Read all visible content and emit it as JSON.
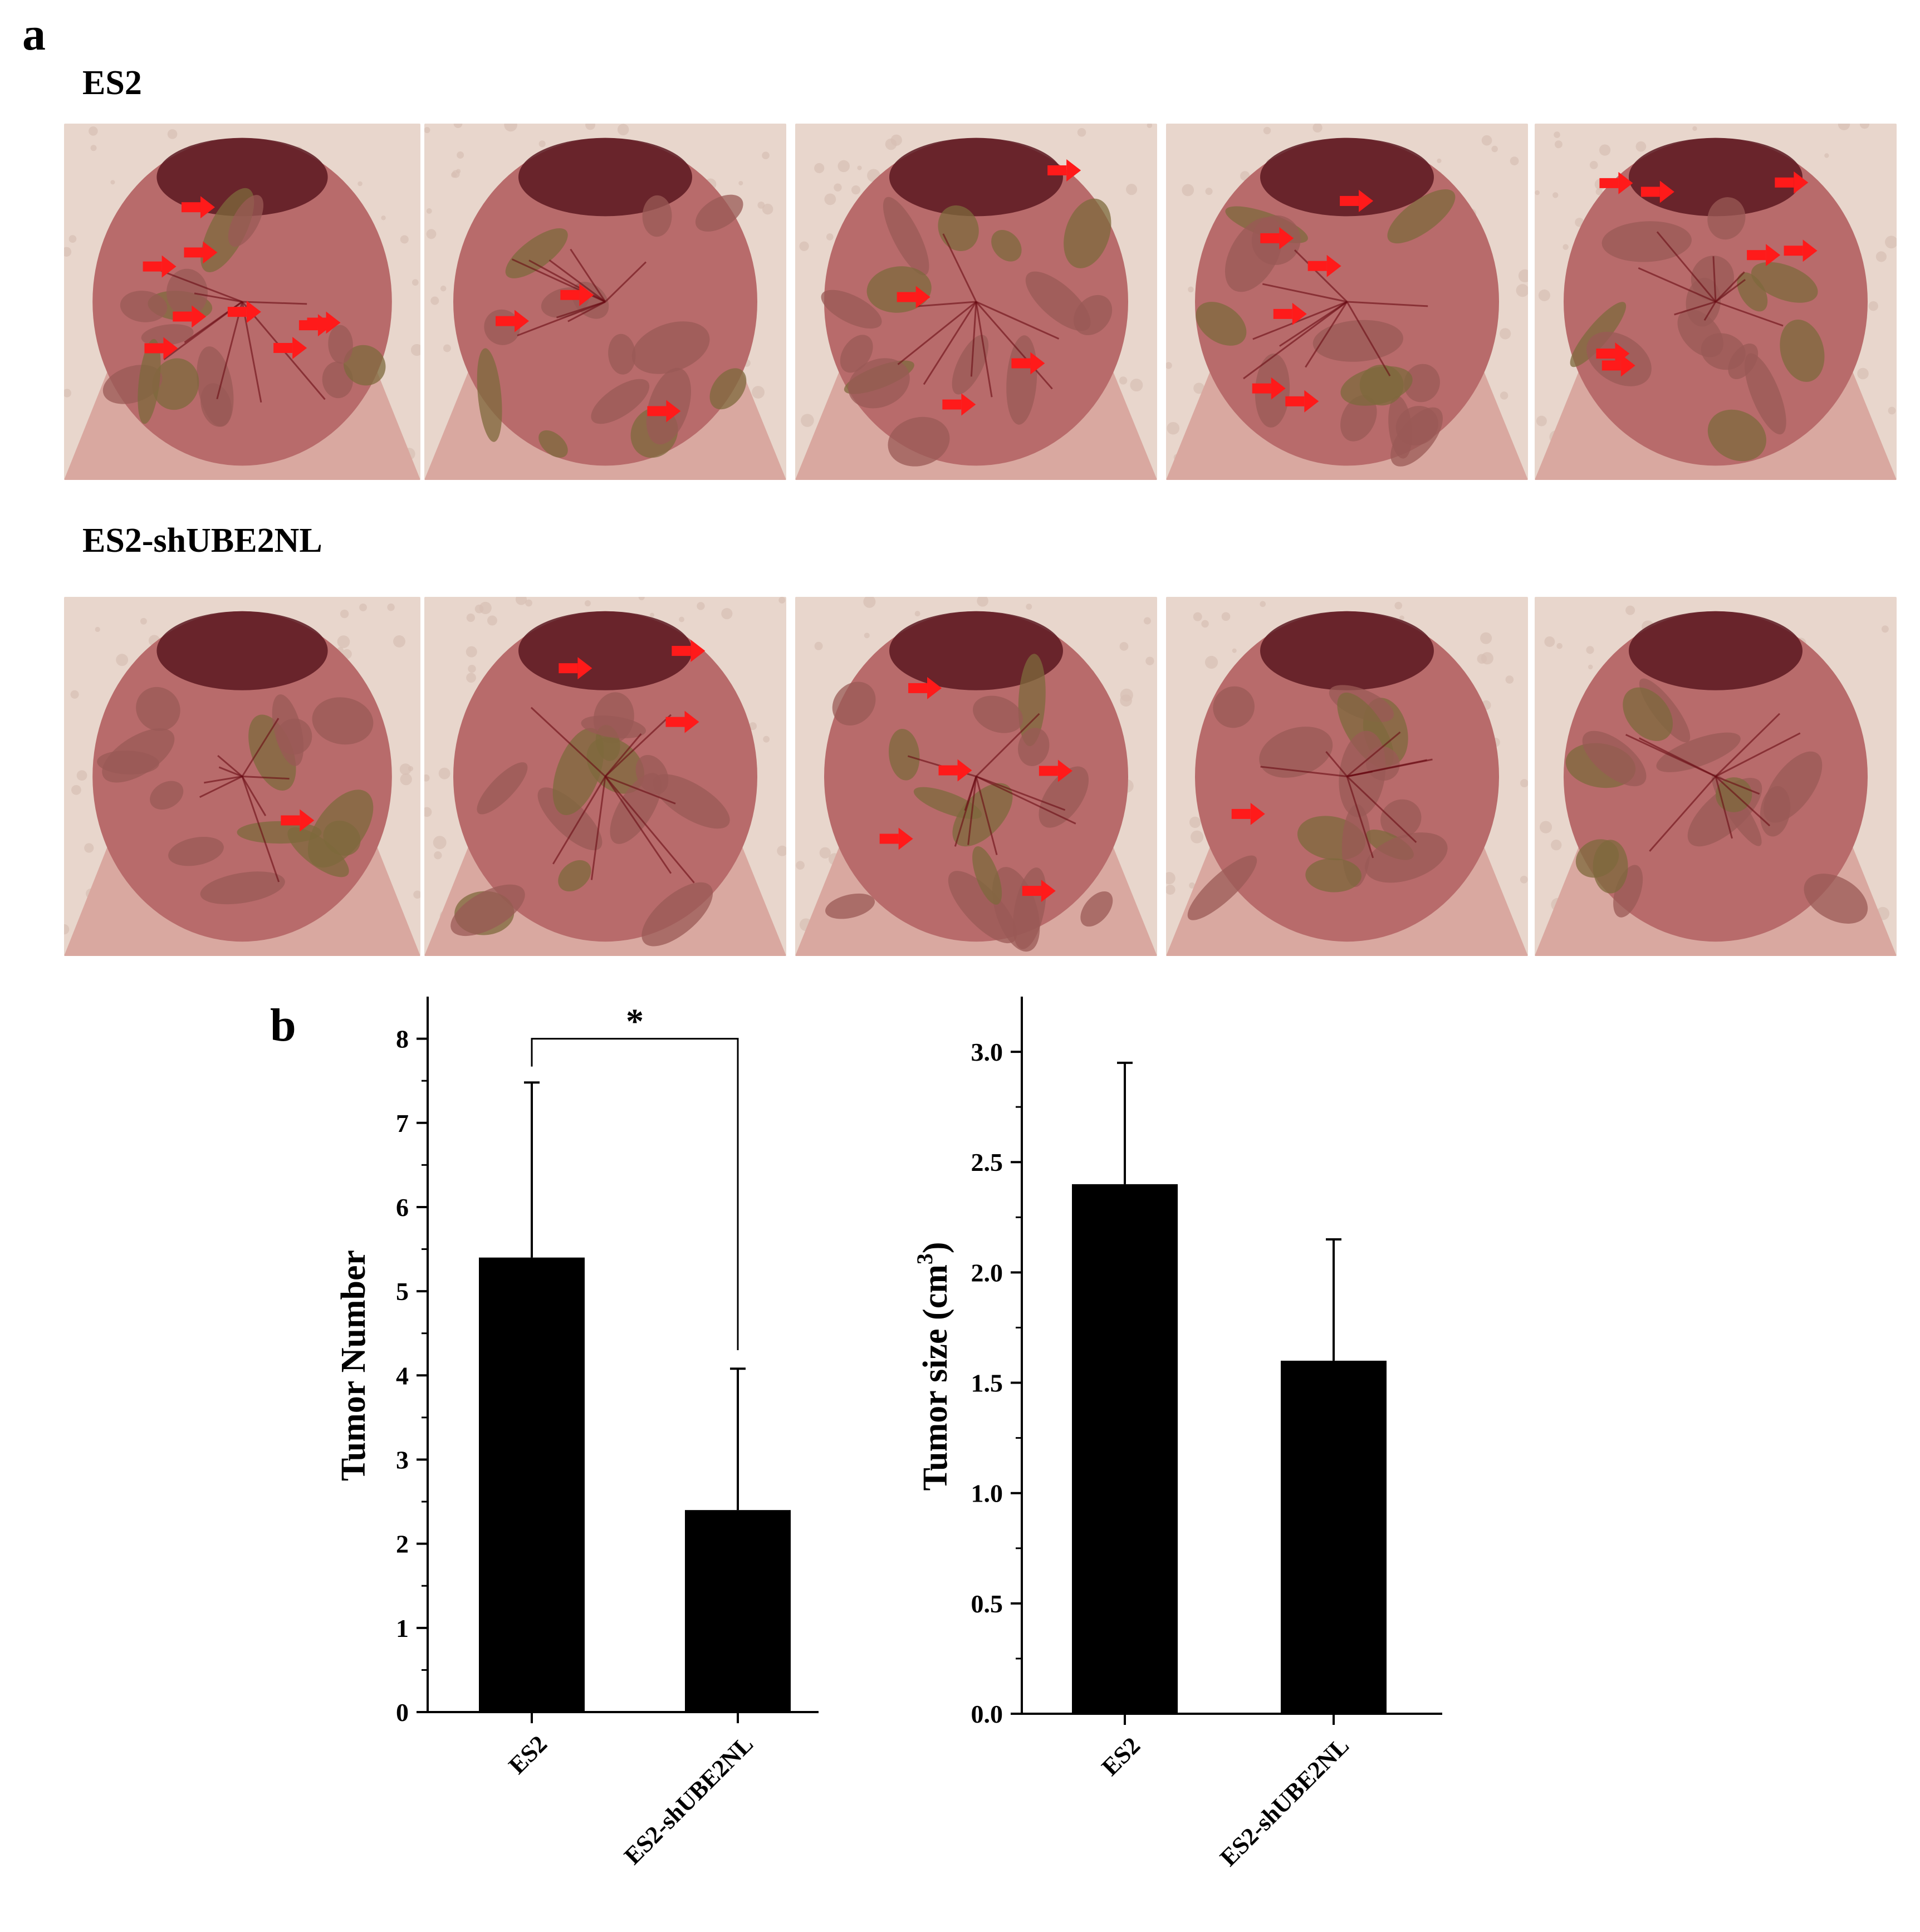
{
  "panel_a": {
    "letter": "a",
    "rows": [
      {
        "label": "ES2",
        "arrow_counts": [
          9,
          3,
          4,
          6,
          7
        ]
      },
      {
        "label": "ES2-shUBE2NL",
        "arrow_counts": [
          1,
          3,
          5,
          1,
          0
        ]
      }
    ]
  },
  "panel_b": {
    "letter": "b"
  },
  "colors": {
    "bar": "#000000",
    "arrow": "#ff1a1a",
    "tissue": "#b86b6b",
    "intestine": "#7e6a3c",
    "foam": "#e8d6cc"
  },
  "chart_data": [
    {
      "type": "bar",
      "categories": [
        "ES2",
        "ES2-shUBE2NL"
      ],
      "values": [
        5.4,
        2.4
      ],
      "error": [
        2.08,
        1.68
      ],
      "ylabel": "Tumor Number",
      "ylim": [
        0,
        8.5
      ],
      "yticks": [
        "0",
        "1",
        "2",
        "3",
        "4",
        "5",
        "6",
        "7",
        "8"
      ],
      "significance": {
        "between": [
          0,
          1
        ],
        "label": "*"
      },
      "grid": false
    },
    {
      "type": "bar",
      "categories": [
        "ES2",
        "ES2-shUBE2NL"
      ],
      "values": [
        2.4,
        1.6
      ],
      "error": [
        0.55,
        0.55
      ],
      "ylabel_main": "Tumor size (cm",
      "ylabel_sup": "3",
      "ylabel_end": ")",
      "ylim": [
        0,
        3.25
      ],
      "yticks": [
        "0.0",
        "0.5",
        "1.0",
        "1.5",
        "2.0",
        "2.5",
        "3.0"
      ],
      "grid": false
    }
  ]
}
